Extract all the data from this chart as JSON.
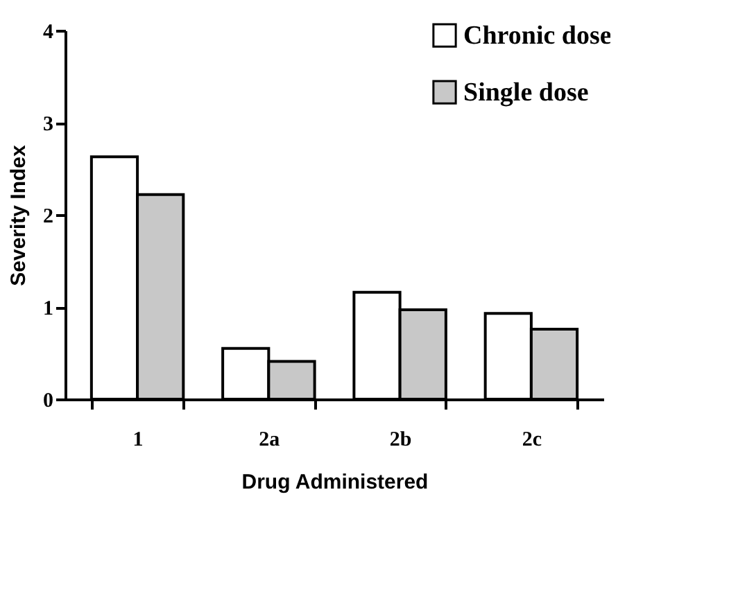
{
  "chart_data": {
    "type": "bar",
    "xlabel": "Drug Administered",
    "ylabel": "Severity Index",
    "categories": [
      "1",
      "2a",
      "2b",
      "2c"
    ],
    "series": [
      {
        "name": "Chronic dose",
        "color": "#ffffff",
        "values": [
          2.63,
          0.55,
          1.16,
          0.93
        ]
      },
      {
        "name": "Single dose",
        "color": "#c8c8c8",
        "values": [
          2.22,
          0.41,
          0.97,
          0.76
        ]
      }
    ],
    "ylim": [
      0,
      4
    ],
    "yticks": [
      0,
      1,
      2,
      3,
      4
    ],
    "grid": false,
    "legend": "top right"
  }
}
